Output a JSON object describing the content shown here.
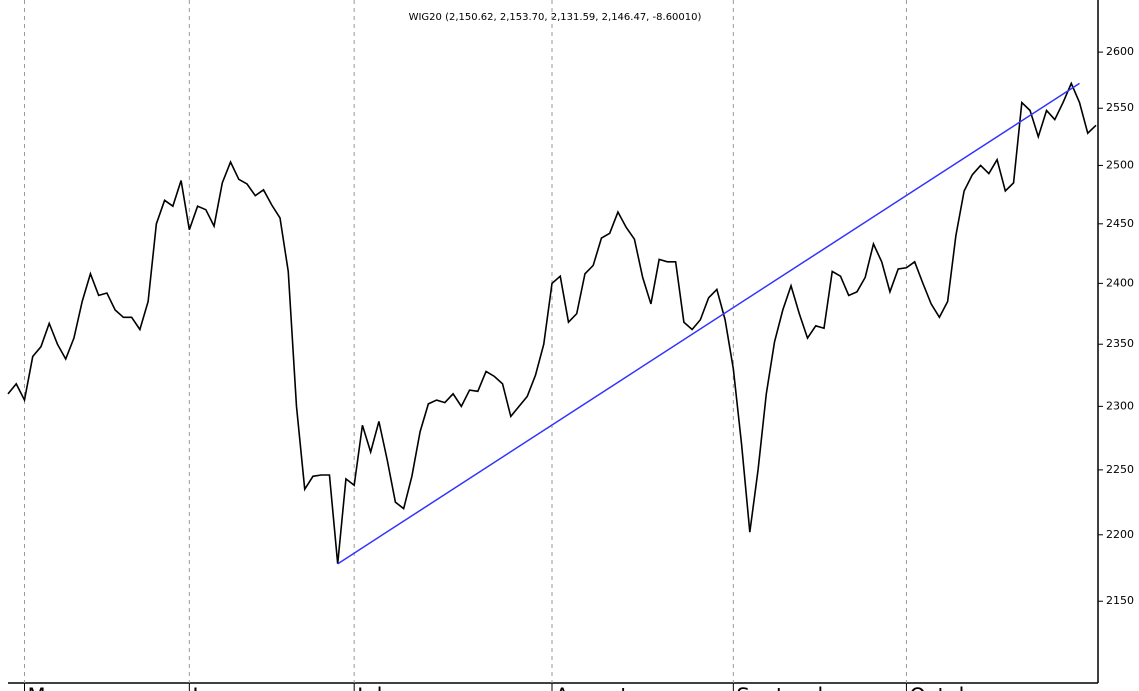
{
  "chart_data": {
    "type": "line",
    "title": "WIG20 (2,150.62, 2,153.70, 2,131.59, 2,146.47, -8.60010)",
    "series": [
      {
        "name": "WIG20",
        "color": "#000000",
        "values": [
          2310,
          2318,
          2305,
          2340,
          2348,
          2367,
          2350,
          2338,
          2355,
          2385,
          2408,
          2390,
          2392,
          2378,
          2372,
          2372,
          2362,
          2385,
          2450,
          2470,
          2465,
          2487,
          2445,
          2465,
          2462,
          2448,
          2485,
          2503,
          2488,
          2484,
          2474,
          2479,
          2466,
          2455,
          2410,
          2300,
          2235,
          2245,
          2246,
          2246,
          2178,
          2243,
          2238,
          2285,
          2264,
          2288,
          2258,
          2225,
          2220,
          2245,
          2280,
          2302,
          2305,
          2303,
          2310,
          2300,
          2313,
          2312,
          2328,
          2324,
          2318,
          2292,
          2300,
          2308,
          2325,
          2350,
          2400,
          2406,
          2368,
          2375,
          2408,
          2415,
          2438,
          2442,
          2460,
          2447,
          2437,
          2405,
          2383,
          2420,
          2418,
          2418,
          2368,
          2362,
          2370,
          2388,
          2395,
          2370,
          2330,
          2270,
          2202,
          2250,
          2310,
          2352,
          2378,
          2398,
          2375,
          2355,
          2365,
          2363,
          2410,
          2406,
          2390,
          2393,
          2405,
          2433,
          2418,
          2393,
          2412,
          2413,
          2418,
          2400,
          2383,
          2372,
          2385,
          2440,
          2478,
          2492,
          2500,
          2493,
          2505,
          2478,
          2485,
          2555,
          2548,
          2525,
          2548,
          2540,
          2555,
          2572,
          2555,
          2528,
          2535
        ]
      }
    ],
    "trendline": {
      "color": "#3333ff",
      "x": [
        40,
        130
      ],
      "values": [
        2178,
        2572
      ]
    },
    "xlim": [
      0,
      132
    ],
    "xticks": [
      {
        "value": 2,
        "label": "May"
      },
      {
        "value": 22,
        "label": "June"
      },
      {
        "value": 42,
        "label": "July"
      },
      {
        "value": 66,
        "label": "August"
      },
      {
        "value": 88,
        "label": "September"
      },
      {
        "value": 109,
        "label": "October"
      }
    ],
    "ylim": [
      2090,
      2640
    ],
    "log_scale": true,
    "yticks": [
      2150,
      2200,
      2250,
      2300,
      2350,
      2400,
      2450,
      2500,
      2550,
      2600
    ],
    "grid": true
  }
}
